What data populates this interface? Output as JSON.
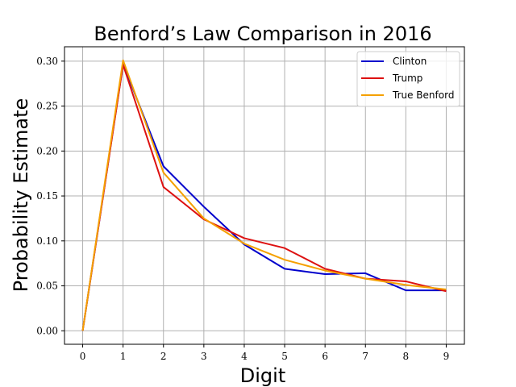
{
  "chart_data": {
    "type": "line",
    "title": "Benford’s Law Comparison in 2016",
    "xlabel": "Digit",
    "ylabel": "Probability Estimate",
    "x": [
      0,
      1,
      2,
      3,
      4,
      5,
      6,
      7,
      8,
      9
    ],
    "xticks": [
      "0",
      "1",
      "2",
      "3",
      "4",
      "5",
      "6",
      "7",
      "8",
      "9"
    ],
    "yticks": [
      "0.00",
      "0.05",
      "0.10",
      "0.15",
      "0.20",
      "0.25",
      "0.30"
    ],
    "xlim": [
      -0.45,
      9.45
    ],
    "ylim": [
      -0.015,
      0.316
    ],
    "grid": true,
    "legend_position": "top-right",
    "series": [
      {
        "name": "Clinton",
        "color": "#0000cc",
        "values": [
          0.0,
          0.297,
          0.183,
          0.138,
          0.096,
          0.069,
          0.063,
          0.064,
          0.045,
          0.045
        ]
      },
      {
        "name": "Trump",
        "color": "#dd1111",
        "values": [
          0.0,
          0.296,
          0.16,
          0.124,
          0.103,
          0.092,
          0.069,
          0.058,
          0.055,
          0.044
        ]
      },
      {
        "name": "True Benford",
        "color": "#f5a000",
        "values": [
          0.0,
          0.301,
          0.176,
          0.125,
          0.097,
          0.079,
          0.067,
          0.058,
          0.051,
          0.046
        ]
      }
    ]
  }
}
